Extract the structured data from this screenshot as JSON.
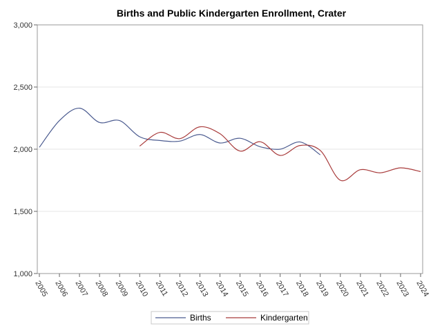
{
  "chart_data": {
    "type": "line",
    "title": "Births and Public Kindergarten Enrollment, Crater",
    "xlabel": "",
    "ylabel": "",
    "x": [
      "2005",
      "2006",
      "2007",
      "2008",
      "2009",
      "2010",
      "2011",
      "2012",
      "2013",
      "2014",
      "2015",
      "2016",
      "2017",
      "2018",
      "2019",
      "2020",
      "2021",
      "2022",
      "2023",
      "2024"
    ],
    "xlim": [
      2005,
      2024
    ],
    "ylim": [
      1000,
      3000
    ],
    "yticks": [
      1000,
      1500,
      2000,
      2500,
      3000
    ],
    "ytick_labels": [
      "1,000",
      "1,500",
      "2,000",
      "2,500",
      "3,000"
    ],
    "grid": "horizontal",
    "legend_position": "bottom",
    "series": [
      {
        "name": "Births",
        "color": "#4a5a8f",
        "x": [
          2005,
          2006,
          2007,
          2008,
          2009,
          2010,
          2011,
          2012,
          2013,
          2014,
          2015,
          2016,
          2017,
          2018,
          2019
        ],
        "values": [
          2015,
          2230,
          2330,
          2215,
          2230,
          2100,
          2070,
          2065,
          2118,
          2050,
          2088,
          2020,
          2000,
          2058,
          1955
        ]
      },
      {
        "name": "Kindergarten",
        "color": "#a83a3a",
        "x": [
          2010,
          2011,
          2012,
          2013,
          2014,
          2015,
          2016,
          2017,
          2018,
          2019,
          2020,
          2021,
          2022,
          2023,
          2024
        ],
        "values": [
          2025,
          2135,
          2085,
          2180,
          2125,
          1985,
          2060,
          1950,
          2030,
          1990,
          1750,
          1835,
          1810,
          1850,
          1820
        ]
      }
    ]
  }
}
